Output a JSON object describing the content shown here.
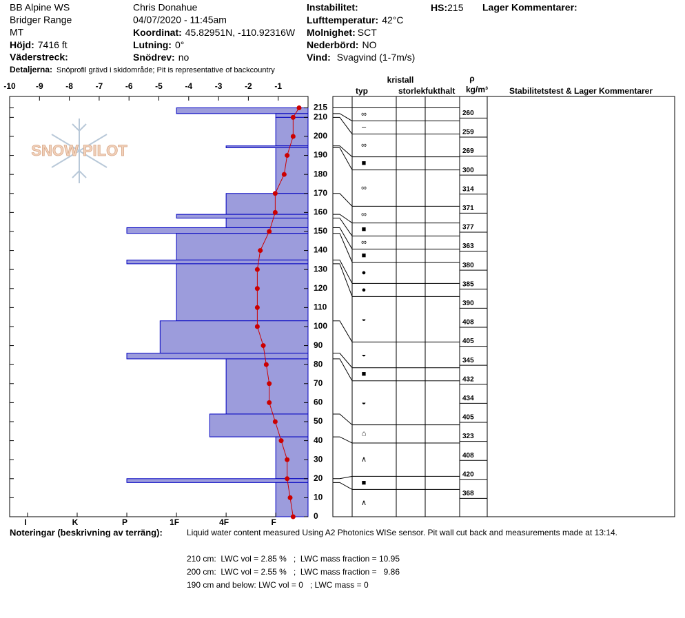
{
  "header": {
    "site": "BB Alpine WS",
    "range": "Bridger Range",
    "state": "MT",
    "elevation": {
      "label": "Höjd:",
      "value": "7416 ft"
    },
    "aspect_label": "Väderstreck:",
    "observer": "Chris Donahue",
    "datetime": "04/07/2020 - 11:45am",
    "coordinates": {
      "label": "Koordinat:",
      "value": "45.82951N, -110.92316W"
    },
    "slope": {
      "label": "Lutning:",
      "value": "0°"
    },
    "wind_loading": {
      "label": "Snödrev:",
      "value": "no"
    },
    "instability_label": "Instabilitet:",
    "air_temp": {
      "label": "Lufttemperatur:",
      "value": "42°C"
    },
    "sky": {
      "label": "Molnighet:",
      "value": "SCT"
    },
    "precip": {
      "label": "Nederbörd:",
      "value": "NO"
    },
    "wind": {
      "label": "Vind:",
      "value": "Svagvind (1-7m/s)"
    },
    "hs": {
      "label": "HS:",
      "value": "215"
    },
    "layer_comments_label": "Lager Kommentarer:",
    "details": {
      "label": "Detaljerna:",
      "value": "Snöprofil grävd i skidområde;  Pit is representative of backcountry"
    }
  },
  "chart_data": {
    "type": "snow-profile",
    "logo": "SNOW PILOT",
    "xlim": [
      -10,
      0
    ],
    "xticks": [
      -10,
      -9,
      -8,
      -7,
      -6,
      -5,
      -4,
      -3,
      -2,
      -1
    ],
    "hardness_lim": [
      6.36,
      0.35
    ],
    "hardness_ticks": [
      {
        "value": 6,
        "label": "I"
      },
      {
        "value": 5,
        "label": "K"
      },
      {
        "value": 4,
        "label": "P"
      },
      {
        "value": 3,
        "label": "1F"
      },
      {
        "value": 2,
        "label": "4F"
      },
      {
        "value": 1,
        "label": "F"
      }
    ],
    "ylim": [
      0,
      221
    ],
    "yticks": [
      0,
      10,
      20,
      30,
      40,
      50,
      60,
      70,
      80,
      90,
      100,
      110,
      120,
      130,
      140,
      150,
      160,
      170,
      180,
      190,
      200,
      210,
      215
    ],
    "layer_color": "#9c9cdc",
    "layer_edge_color": "#0000c0",
    "layers": [
      {
        "top": 215,
        "bottom": 212,
        "hardness": 3,
        "grain": "∞"
      },
      {
        "top": 212,
        "bottom": 210,
        "hardness": 1,
        "grain": "–"
      },
      {
        "top": 210,
        "bottom": 195,
        "hardness": 1,
        "grain": "∞"
      },
      {
        "top": 195,
        "bottom": 194,
        "hardness": 2,
        "grain": "■"
      },
      {
        "top": 194,
        "bottom": 170,
        "hardness": 1,
        "grain": "∞"
      },
      {
        "top": 170,
        "bottom": 159,
        "hardness": 2,
        "grain": "∞"
      },
      {
        "top": 159,
        "bottom": 157,
        "hardness": 3,
        "grain": "■"
      },
      {
        "top": 157,
        "bottom": 152,
        "hardness": 2,
        "grain": "∞"
      },
      {
        "top": 152,
        "bottom": 149,
        "hardness": 4,
        "grain": "■"
      },
      {
        "top": 149,
        "bottom": 135,
        "hardness": 3,
        "grain": "●"
      },
      {
        "top": 135,
        "bottom": 133,
        "hardness": 4,
        "grain": "●"
      },
      {
        "top": 133,
        "bottom": 103,
        "hardness": 3,
        "grain": "◒"
      },
      {
        "top": 103,
        "bottom": 86,
        "hardness": 3.33,
        "grain": "◒"
      },
      {
        "top": 86,
        "bottom": 83,
        "hardness": 4,
        "grain": "■"
      },
      {
        "top": 83,
        "bottom": 54,
        "hardness": 2,
        "grain": "◒"
      },
      {
        "top": 54,
        "bottom": 42,
        "hardness": 2.33,
        "grain": "⌂"
      },
      {
        "top": 42,
        "bottom": 20,
        "hardness": 1,
        "grain": "∧"
      },
      {
        "top": 20,
        "bottom": 18,
        "hardness": 4,
        "grain": "■"
      },
      {
        "top": 18,
        "bottom": 0,
        "hardness": 1,
        "grain": "∧"
      }
    ],
    "temperature": {
      "color": "#cc0000",
      "heights": [
        215,
        210,
        200,
        190,
        180,
        170,
        160,
        150,
        140,
        130,
        120,
        110,
        100,
        90,
        80,
        70,
        60,
        50,
        40,
        30,
        20,
        10,
        0
      ],
      "values": [
        -0.3,
        -0.5,
        -0.5,
        -0.7,
        -0.8,
        -1.1,
        -1.1,
        -1.3,
        -1.6,
        -1.7,
        -1.7,
        -1.7,
        -1.7,
        -1.5,
        -1.4,
        -1.3,
        -1.3,
        -1.1,
        -0.9,
        -0.7,
        -0.7,
        -0.6,
        -0.5
      ]
    },
    "density": {
      "heights": [
        210,
        200,
        190,
        180,
        170,
        160,
        150,
        140,
        130,
        120,
        110,
        100,
        90,
        80,
        70,
        60,
        50,
        40,
        30,
        20,
        10
      ],
      "values": [
        260,
        259,
        269,
        300,
        314,
        371,
        377,
        363,
        380,
        385,
        390,
        408,
        405,
        345,
        432,
        434,
        405,
        323,
        408,
        420,
        368
      ]
    },
    "table_headers": {
      "crystal": "kristall",
      "type": "typ",
      "size": "storlek",
      "moisture": "fukthalt",
      "rho": "ρ",
      "rho_unit": "kg/m³",
      "comments": "Stabilitetstest & Lager Kommentarer"
    }
  },
  "notes": {
    "label": "Noteringar (beskrivning av terräng):",
    "text": "Liquid water content measured Using A2 Photonics WISe sensor. Pit wall cut back and measurements made at 13:14.",
    "lines": [
      "210 cm:  LWC vol = 2.85 %   ;  LWC mass fraction = 10.95",
      "200 cm:  LWC vol = 2.55 %   ;  LWC mass fraction =   9.86",
      "190 cm and below: LWC vol = 0   ; LWC mass = 0"
    ]
  }
}
